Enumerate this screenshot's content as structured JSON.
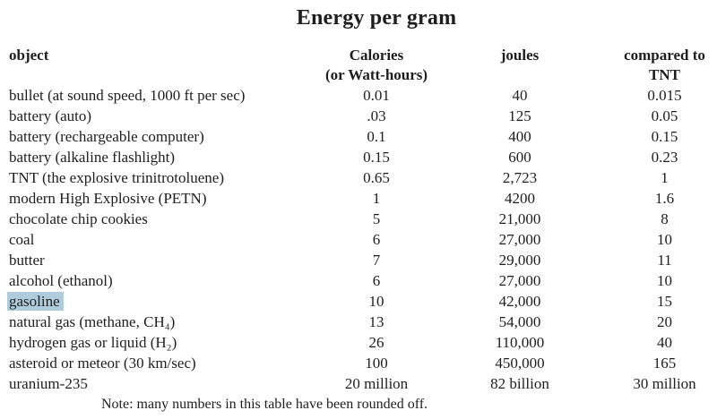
{
  "title": "Energy per gram",
  "table": {
    "headers": {
      "object": "object",
      "calories_line1": "Calories",
      "calories_line2": "(or Watt-hours)",
      "joules": "joules",
      "tnt_line1": "compared to",
      "tnt_line2": "TNT"
    },
    "rows": [
      {
        "object": "bullet (at sound speed, 1000 ft per sec)",
        "calories": "0.01",
        "joules": "40",
        "tnt": "0.015",
        "highlighted": false
      },
      {
        "object": "battery (auto)",
        "calories": ".03",
        "joules": "125",
        "tnt": "0.05",
        "highlighted": false
      },
      {
        "object": "battery (rechargeable computer)",
        "calories": "0.1",
        "joules": "400",
        "tnt": "0.15",
        "highlighted": false
      },
      {
        "object": "battery (alkaline flashlight)",
        "calories": "0.15",
        "joules": "600",
        "tnt": "0.23",
        "highlighted": false
      },
      {
        "object": "TNT (the explosive trinitrotoluene)",
        "calories": "0.65",
        "joules": "2,723",
        "tnt": "1",
        "highlighted": false
      },
      {
        "object": "modern High Explosive (PETN)",
        "calories": "1",
        "joules": "4200",
        "tnt": "1.6",
        "highlighted": false
      },
      {
        "object": "chocolate chip cookies",
        "calories": "5",
        "joules": "21,000",
        "tnt": "8",
        "highlighted": false
      },
      {
        "object": "coal",
        "calories": "6",
        "joules": "27,000",
        "tnt": "10",
        "highlighted": false
      },
      {
        "object": "butter",
        "calories": "7",
        "joules": "29,000",
        "tnt": "11",
        "highlighted": false
      },
      {
        "object": "alcohol (ethanol)",
        "calories": "6",
        "joules": "27,000",
        "tnt": "10",
        "highlighted": false
      },
      {
        "object": "gasoline",
        "calories": "10",
        "joules": "42,000",
        "tnt": "15",
        "highlighted": true
      },
      {
        "object": "natural gas (methane, CH₄)",
        "calories": "13",
        "joules": "54,000",
        "tnt": "20",
        "highlighted": false
      },
      {
        "object": "hydrogen gas or liquid (H₂)",
        "calories": "26",
        "joules": "110,000",
        "tnt": "40",
        "highlighted": false
      },
      {
        "object": "asteroid or meteor (30 km/sec)",
        "calories": "100",
        "joules": "450,000",
        "tnt": "165",
        "highlighted": false
      },
      {
        "object": "uranium-235",
        "calories": "20 million",
        "joules": "82 billion",
        "tnt": "30 million",
        "highlighted": false
      }
    ]
  },
  "note": "Note: many numbers in this table have been rounded off.",
  "colors": {
    "background": "#ffffff",
    "text": "#1e1e1e",
    "highlight": "#afccdd"
  }
}
